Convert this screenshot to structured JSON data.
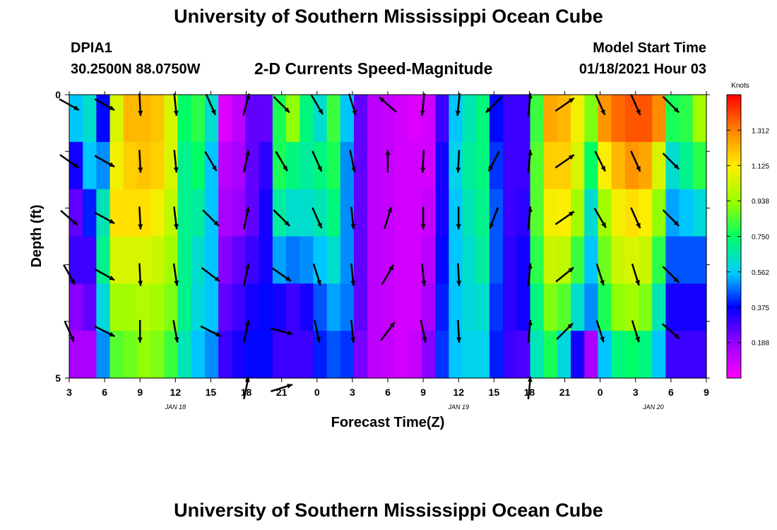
{
  "header": {
    "title": "University of Southern Mississippi Ocean Cube",
    "station_id": "DPIA1",
    "station_coords": "30.2500N 88.0750W",
    "subtitle": "2-D Currents Speed-Magnitude",
    "start_label": "Model Start Time",
    "start_value": "01/18/2021 Hour 03"
  },
  "footer": {
    "title": "University of Southern Mississippi Ocean Cube"
  },
  "chart_data": {
    "type": "heatmap",
    "xlabel": "Forecast Time(Z)",
    "ylabel": "Depth (ft)",
    "x_ticks": [
      "3",
      "6",
      "9",
      "12",
      "15",
      "18",
      "21",
      "0",
      "3",
      "6",
      "9",
      "12",
      "15",
      "18",
      "21",
      "0",
      "3",
      "6",
      "9"
    ],
    "date_labels": [
      {
        "text": "JAN 18",
        "at_tick": 3
      },
      {
        "text": "JAN 19",
        "at_tick": 11
      },
      {
        "text": "JAN 20",
        "at_tick": 16.5
      }
    ],
    "y_ticks": [
      "0",
      "",
      "",
      "",
      "",
      "5"
    ],
    "ylim": [
      0,
      5
    ],
    "colorbar": {
      "title": "Knots",
      "ticks": [
        "1.312",
        "1.125",
        "0.938",
        "0.750",
        "0.562",
        "0.375",
        "0.188"
      ],
      "tick_values": [
        1.312,
        1.125,
        0.938,
        0.75,
        0.562,
        0.375,
        0.188
      ],
      "min": 0.0,
      "max": 1.5
    },
    "depth_layers": 5,
    "speed_knots": [
      [
        0.55,
        0.62,
        0.38,
        1.05,
        1.22,
        1.22,
        1.2,
        1.05,
        0.75,
        0.8,
        0.62,
        0.06,
        0.12,
        0.25,
        0.25,
        0.78,
        0.92,
        0.72,
        0.62,
        0.82,
        0.55,
        0.25,
        0.12,
        0.1,
        0.08,
        0.06,
        0.08,
        0.3,
        0.55,
        0.65,
        0.72,
        0.38,
        0.3,
        0.3,
        0.82,
        1.25,
        1.22,
        1.1,
        0.9,
        1.28,
        1.35,
        1.38,
        1.38,
        1.3,
        0.78,
        0.8,
        0.95
      ],
      [
        0.35,
        0.55,
        0.5,
        1.1,
        1.18,
        1.2,
        1.18,
        1.05,
        0.7,
        0.75,
        0.55,
        0.12,
        0.15,
        0.25,
        0.32,
        0.78,
        0.72,
        0.68,
        0.72,
        0.78,
        0.5,
        0.25,
        0.12,
        0.1,
        0.08,
        0.08,
        0.08,
        0.35,
        0.58,
        0.68,
        0.72,
        0.42,
        0.3,
        0.3,
        0.85,
        1.18,
        1.18,
        1.05,
        0.75,
        1.12,
        1.22,
        1.28,
        1.25,
        1.05,
        0.62,
        0.7,
        0.8
      ],
      [
        0.25,
        0.4,
        0.65,
        1.15,
        1.15,
        1.15,
        1.1,
        1.0,
        0.7,
        0.68,
        0.55,
        0.15,
        0.18,
        0.25,
        0.35,
        0.68,
        0.62,
        0.62,
        0.65,
        0.72,
        0.5,
        0.25,
        0.12,
        0.1,
        0.08,
        0.08,
        0.1,
        0.35,
        0.55,
        0.65,
        0.7,
        0.45,
        0.3,
        0.32,
        0.85,
        1.1,
        1.12,
        0.95,
        0.62,
        0.95,
        1.1,
        1.15,
        1.12,
        0.92,
        0.52,
        0.55,
        0.6
      ],
      [
        0.3,
        0.3,
        0.7,
        1.05,
        1.05,
        1.05,
        1.02,
        0.95,
        0.7,
        0.62,
        0.55,
        0.2,
        0.25,
        0.3,
        0.35,
        0.52,
        0.48,
        0.5,
        0.55,
        0.62,
        0.5,
        0.25,
        0.12,
        0.1,
        0.08,
        0.08,
        0.12,
        0.38,
        0.55,
        0.62,
        0.68,
        0.45,
        0.32,
        0.35,
        0.8,
        1.02,
        1.0,
        0.82,
        0.55,
        0.88,
        1.02,
        1.05,
        1.02,
        0.8,
        0.45,
        0.45,
        0.45
      ],
      [
        0.2,
        0.25,
        0.6,
        0.95,
        0.95,
        0.98,
        0.95,
        0.9,
        0.7,
        0.6,
        0.55,
        0.25,
        0.3,
        0.35,
        0.38,
        0.35,
        0.3,
        0.35,
        0.45,
        0.52,
        0.48,
        0.25,
        0.12,
        0.1,
        0.08,
        0.08,
        0.15,
        0.4,
        0.55,
        0.6,
        0.62,
        0.42,
        0.32,
        0.35,
        0.72,
        0.9,
        0.85,
        0.62,
        0.5,
        0.78,
        0.92,
        0.95,
        0.9,
        0.65,
        0.35,
        0.35,
        0.35
      ],
      [
        0.15,
        0.15,
        0.5,
        0.85,
        0.88,
        0.92,
        0.9,
        0.82,
        0.65,
        0.55,
        0.5,
        0.3,
        0.35,
        0.38,
        0.38,
        0.3,
        0.3,
        0.3,
        0.4,
        0.45,
        0.42,
        0.22,
        0.12,
        0.1,
        0.08,
        0.1,
        0.2,
        0.42,
        0.55,
        0.58,
        0.58,
        0.4,
        0.3,
        0.28,
        0.65,
        0.78,
        0.6,
        0.35,
        0.15,
        0.55,
        0.72,
        0.75,
        0.72,
        0.55,
        0.3,
        0.3,
        0.3
      ]
    ],
    "vectors": [
      {
        "x_tick": 0,
        "depths": [
          [
            0.9,
            -0.5
          ],
          [
            0.85,
            -0.6
          ],
          [
            0.8,
            -0.7
          ],
          [
            0.5,
            -0.9
          ],
          [
            0.4,
            -0.9
          ]
        ]
      },
      {
        "x_tick": 1,
        "depths": [
          [
            0.9,
            -0.5
          ],
          [
            0.9,
            -0.5
          ],
          [
            0.9,
            -0.5
          ],
          [
            0.9,
            -0.5
          ],
          [
            0.9,
            -0.45
          ]
        ]
      },
      {
        "x_tick": 2,
        "depths": [
          [
            0.05,
            -1
          ],
          [
            0.05,
            -1
          ],
          [
            0.05,
            -1
          ],
          [
            0.05,
            -1
          ],
          [
            0.0,
            -1
          ]
        ]
      },
      {
        "x_tick": 3,
        "depths": [
          [
            0.1,
            -1
          ],
          [
            0.1,
            -1
          ],
          [
            0.12,
            -1
          ],
          [
            0.15,
            -1
          ],
          [
            0.18,
            -1
          ]
        ]
      },
      {
        "x_tick": 4,
        "depths": [
          [
            0.4,
            -0.9
          ],
          [
            0.5,
            -0.85
          ],
          [
            0.7,
            -0.7
          ],
          [
            0.8,
            -0.6
          ],
          [
            0.9,
            -0.45
          ]
        ]
      },
      {
        "x_tick": 5,
        "depths": [
          [
            0.25,
            0.95
          ],
          [
            0.2,
            0.95
          ],
          [
            0.2,
            0.95
          ],
          [
            0.2,
            0.95
          ],
          [
            0.2,
            0.95
          ],
          [
            0.2,
            0.95
          ]
        ]
      },
      {
        "x_tick": 6,
        "depths": [
          [
            0.7,
            -0.7
          ],
          [
            0.5,
            -0.85
          ],
          [
            0.7,
            -0.7
          ],
          [
            0.8,
            -0.55
          ],
          [
            0.95,
            -0.25
          ],
          [
            0.95,
            0.3
          ]
        ]
      },
      {
        "x_tick": 7,
        "depths": [
          [
            0.5,
            -0.85
          ],
          [
            0.4,
            -0.9
          ],
          [
            0.4,
            -0.9
          ],
          [
            0.3,
            -0.95
          ],
          [
            0.2,
            -0.95
          ]
        ]
      },
      {
        "x_tick": 8,
        "depths": [
          [
            0.3,
            -0.95
          ],
          [
            0.2,
            -0.95
          ],
          [
            0.1,
            -1
          ],
          [
            0.1,
            -1
          ],
          [
            0.1,
            -1
          ]
        ]
      },
      {
        "x_tick": 9,
        "depths": [
          [
            -0.75,
            0.65
          ],
          [
            0.0,
            1
          ],
          [
            0.3,
            0.95
          ],
          [
            0.5,
            0.85
          ],
          [
            0.6,
            0.8
          ]
        ]
      },
      {
        "x_tick": 10,
        "depths": [
          [
            -0.1,
            -1
          ],
          [
            -0.05,
            -1
          ],
          [
            0.0,
            -1
          ],
          [
            0.1,
            -1
          ],
          [
            0.2,
            -0.95
          ]
        ]
      },
      {
        "x_tick": 11,
        "depths": [
          [
            -0.1,
            -1
          ],
          [
            -0.05,
            -1
          ],
          [
            0.0,
            -1
          ],
          [
            0.05,
            -1
          ],
          [
            0.05,
            -1
          ]
        ]
      },
      {
        "x_tick": 12,
        "depths": [
          [
            -0.7,
            -0.7
          ],
          [
            -0.45,
            -0.85
          ],
          [
            -0.35,
            -0.9
          ]
        ]
      },
      {
        "x_tick": 13,
        "depths": [
          [
            0.1,
            1
          ],
          [
            0.1,
            1
          ],
          [
            0.1,
            1
          ],
          [
            0.1,
            1
          ],
          [
            0.1,
            1
          ],
          [
            0.1,
            1
          ]
        ]
      },
      {
        "x_tick": 14,
        "depths": [
          [
            0.8,
            0.55
          ],
          [
            0.8,
            0.55
          ],
          [
            0.8,
            0.55
          ],
          [
            0.75,
            0.6
          ],
          [
            0.7,
            0.7
          ]
        ]
      },
      {
        "x_tick": 15,
        "depths": [
          [
            0.4,
            -0.9
          ],
          [
            0.45,
            -0.9
          ],
          [
            0.5,
            -0.85
          ],
          [
            0.3,
            -0.95
          ],
          [
            0.3,
            -0.95
          ]
        ]
      },
      {
        "x_tick": 16,
        "depths": [
          [
            0.4,
            -0.9
          ],
          [
            0.4,
            -0.9
          ],
          [
            0.4,
            -0.9
          ],
          [
            0.3,
            -0.95
          ],
          [
            0.3,
            -0.95
          ]
        ]
      },
      {
        "x_tick": 17,
        "depths": [
          [
            0.7,
            -0.7
          ],
          [
            0.7,
            -0.7
          ],
          [
            0.7,
            -0.7
          ],
          [
            0.7,
            -0.7
          ],
          [
            0.75,
            -0.65
          ]
        ]
      }
    ]
  }
}
